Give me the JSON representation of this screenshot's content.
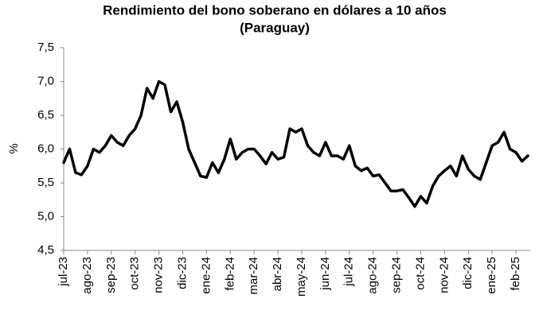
{
  "chart_data": {
    "type": "line",
    "title": [
      "Rendimiento del bono soberano en dólares a 10 años",
      "(Paraguay)"
    ],
    "y_label": "%",
    "color": "#000000",
    "categories": [
      "jul-23",
      null,
      null,
      null,
      "ago-23",
      null,
      null,
      null,
      "sep-23",
      null,
      null,
      null,
      "oct-23",
      null,
      null,
      null,
      "nov-23",
      null,
      null,
      null,
      "dic-23",
      null,
      null,
      null,
      "ene-24",
      null,
      null,
      null,
      "feb-24",
      null,
      null,
      null,
      "mar-24",
      null,
      null,
      null,
      "abr-24",
      null,
      null,
      null,
      "may-24",
      null,
      null,
      null,
      "jun-24",
      null,
      null,
      null,
      "jul-24",
      null,
      null,
      null,
      "ago-24",
      null,
      null,
      null,
      "sep-24",
      null,
      null,
      null,
      "oct-24",
      null,
      null,
      null,
      "nov-24",
      null,
      null,
      null,
      "dic-24",
      null,
      null,
      null,
      "ene-25",
      null,
      null,
      null,
      "feb-25",
      null,
      null
    ],
    "values": [
      5.8,
      6.0,
      5.65,
      5.62,
      5.75,
      6.0,
      5.95,
      6.05,
      6.2,
      6.1,
      6.05,
      6.2,
      6.3,
      6.5,
      6.9,
      6.75,
      7.0,
      6.95,
      6.55,
      6.7,
      6.4,
      6.0,
      5.8,
      5.6,
      5.58,
      5.8,
      5.65,
      5.85,
      6.15,
      5.85,
      5.95,
      6.0,
      6.0,
      5.9,
      5.78,
      5.95,
      5.85,
      5.88,
      6.3,
      6.25,
      6.3,
      6.05,
      5.95,
      5.9,
      6.1,
      5.9,
      5.9,
      5.85,
      6.05,
      5.75,
      5.68,
      5.72,
      5.6,
      5.62,
      5.5,
      5.38,
      5.38,
      5.4,
      5.28,
      5.15,
      5.3,
      5.2,
      5.45,
      5.6,
      5.68,
      5.75,
      5.6,
      5.9,
      5.7,
      5.6,
      5.55,
      5.8,
      6.05,
      6.1,
      6.25,
      6.0,
      5.95,
      5.82,
      5.9
    ],
    "ylim": [
      4.5,
      7.5
    ],
    "yticks": [
      {
        "value": 4.5,
        "label": "4,5"
      },
      {
        "value": 5,
        "label": "5,0"
      },
      {
        "value": 5.5,
        "label": "5,5"
      },
      {
        "value": 6,
        "label": "6,0"
      },
      {
        "value": 6.5,
        "label": "6,5"
      },
      {
        "value": 7,
        "label": "7,0"
      },
      {
        "value": 7.5,
        "label": "7,5"
      }
    ],
    "grid": false
  }
}
